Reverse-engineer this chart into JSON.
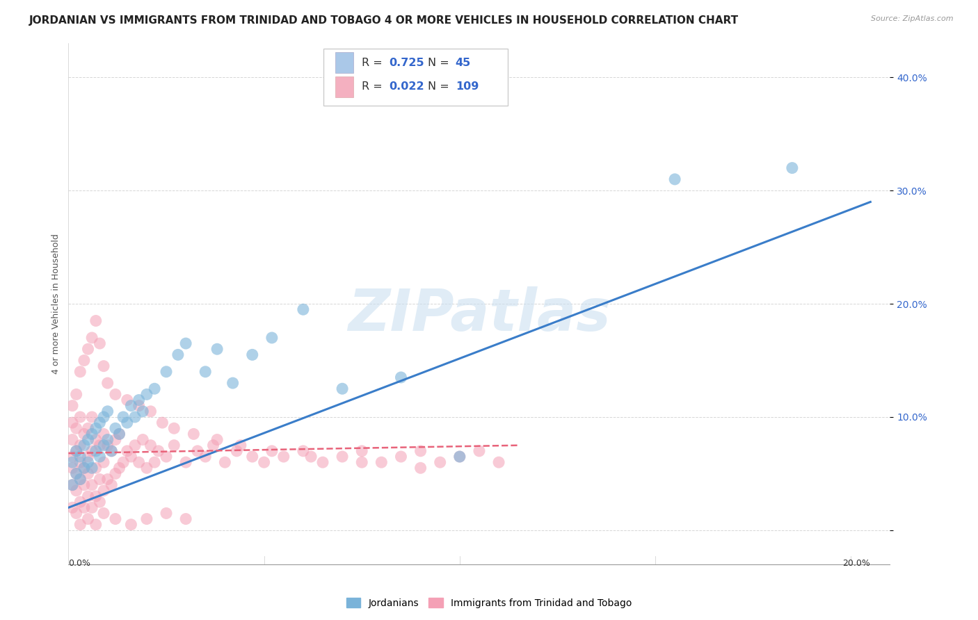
{
  "title": "JORDANIAN VS IMMIGRANTS FROM TRINIDAD AND TOBAGO 4 OR MORE VEHICLES IN HOUSEHOLD CORRELATION CHART",
  "source": "Source: ZipAtlas.com",
  "ylabel": "4 or more Vehicles in Household",
  "xlim": [
    0.0,
    0.21
  ],
  "ylim": [
    -0.03,
    0.43
  ],
  "yticks": [
    0.0,
    0.1,
    0.2,
    0.3,
    0.4
  ],
  "ytick_labels": [
    "",
    "10.0%",
    "20.0%",
    "30.0%",
    "40.0%"
  ],
  "blue_color": "#7ab3d9",
  "pink_color": "#f4a0b5",
  "trendline_blue_color": "#3a7dc9",
  "trendline_pink_color": "#e8637a",
  "trendline_pink_style": "--",
  "watermark": "ZIPatlas",
  "watermark_color": "#cce0f0",
  "background_color": "#ffffff",
  "grid_color": "#cccccc",
  "blue_trend_x": [
    0.0,
    0.205
  ],
  "blue_trend_y": [
    0.02,
    0.29
  ],
  "pink_trend_x": [
    0.0,
    0.115
  ],
  "pink_trend_y": [
    0.068,
    0.075
  ],
  "jordanians_x": [
    0.001,
    0.001,
    0.002,
    0.002,
    0.003,
    0.003,
    0.004,
    0.004,
    0.005,
    0.005,
    0.006,
    0.006,
    0.007,
    0.007,
    0.008,
    0.008,
    0.009,
    0.009,
    0.01,
    0.01,
    0.011,
    0.012,
    0.013,
    0.014,
    0.015,
    0.016,
    0.017,
    0.018,
    0.019,
    0.02,
    0.022,
    0.025,
    0.028,
    0.03,
    0.035,
    0.038,
    0.042,
    0.047,
    0.052,
    0.06,
    0.07,
    0.085,
    0.1,
    0.155,
    0.185
  ],
  "jordanians_y": [
    0.04,
    0.06,
    0.05,
    0.07,
    0.045,
    0.065,
    0.055,
    0.075,
    0.06,
    0.08,
    0.055,
    0.085,
    0.07,
    0.09,
    0.065,
    0.095,
    0.075,
    0.1,
    0.08,
    0.105,
    0.07,
    0.09,
    0.085,
    0.1,
    0.095,
    0.11,
    0.1,
    0.115,
    0.105,
    0.12,
    0.125,
    0.14,
    0.155,
    0.165,
    0.14,
    0.16,
    0.13,
    0.155,
    0.17,
    0.195,
    0.125,
    0.135,
    0.065,
    0.31,
    0.32
  ],
  "tt_x": [
    0.001,
    0.001,
    0.001,
    0.001,
    0.001,
    0.001,
    0.001,
    0.002,
    0.002,
    0.002,
    0.002,
    0.002,
    0.003,
    0.003,
    0.003,
    0.003,
    0.003,
    0.004,
    0.004,
    0.004,
    0.004,
    0.005,
    0.005,
    0.005,
    0.005,
    0.006,
    0.006,
    0.006,
    0.006,
    0.007,
    0.007,
    0.007,
    0.008,
    0.008,
    0.008,
    0.009,
    0.009,
    0.009,
    0.01,
    0.01,
    0.011,
    0.011,
    0.012,
    0.012,
    0.013,
    0.013,
    0.014,
    0.015,
    0.016,
    0.017,
    0.018,
    0.019,
    0.02,
    0.021,
    0.022,
    0.023,
    0.025,
    0.027,
    0.03,
    0.033,
    0.035,
    0.037,
    0.04,
    0.043,
    0.047,
    0.05,
    0.055,
    0.06,
    0.065,
    0.07,
    0.075,
    0.08,
    0.085,
    0.09,
    0.095,
    0.1,
    0.105,
    0.11,
    0.002,
    0.003,
    0.004,
    0.005,
    0.006,
    0.007,
    0.008,
    0.009,
    0.01,
    0.012,
    0.015,
    0.018,
    0.021,
    0.024,
    0.027,
    0.032,
    0.038,
    0.044,
    0.052,
    0.062,
    0.075,
    0.09,
    0.003,
    0.005,
    0.007,
    0.009,
    0.012,
    0.016,
    0.02,
    0.025,
    0.03
  ],
  "tt_y": [
    0.02,
    0.04,
    0.055,
    0.065,
    0.08,
    0.095,
    0.11,
    0.015,
    0.035,
    0.05,
    0.07,
    0.09,
    0.025,
    0.045,
    0.06,
    0.075,
    0.1,
    0.02,
    0.04,
    0.055,
    0.085,
    0.03,
    0.05,
    0.065,
    0.09,
    0.02,
    0.04,
    0.07,
    0.1,
    0.03,
    0.055,
    0.08,
    0.025,
    0.045,
    0.075,
    0.035,
    0.06,
    0.085,
    0.045,
    0.075,
    0.04,
    0.07,
    0.05,
    0.08,
    0.055,
    0.085,
    0.06,
    0.07,
    0.065,
    0.075,
    0.06,
    0.08,
    0.055,
    0.075,
    0.06,
    0.07,
    0.065,
    0.075,
    0.06,
    0.07,
    0.065,
    0.075,
    0.06,
    0.07,
    0.065,
    0.06,
    0.065,
    0.07,
    0.06,
    0.065,
    0.07,
    0.06,
    0.065,
    0.07,
    0.06,
    0.065,
    0.07,
    0.06,
    0.12,
    0.14,
    0.15,
    0.16,
    0.17,
    0.185,
    0.165,
    0.145,
    0.13,
    0.12,
    0.115,
    0.11,
    0.105,
    0.095,
    0.09,
    0.085,
    0.08,
    0.075,
    0.07,
    0.065,
    0.06,
    0.055,
    0.005,
    0.01,
    0.005,
    0.015,
    0.01,
    0.005,
    0.01,
    0.015,
    0.01
  ],
  "legend_color1": "#aac8e8",
  "legend_color2": "#f4b0c0",
  "legend_r1": "0.725",
  "legend_n1": "45",
  "legend_r2": "0.022",
  "legend_n2": "109",
  "legend_value_color": "#3366cc",
  "legend_text_color": "#333333",
  "bottom_legend_labels": [
    "Jordanians",
    "Immigrants from Trinidad and Tobago"
  ],
  "title_fontsize": 11,
  "axis_label_fontsize": 9,
  "tick_fontsize": 10,
  "legend_fontsize": 12,
  "source_text": "Source: ZipAtlas.com"
}
